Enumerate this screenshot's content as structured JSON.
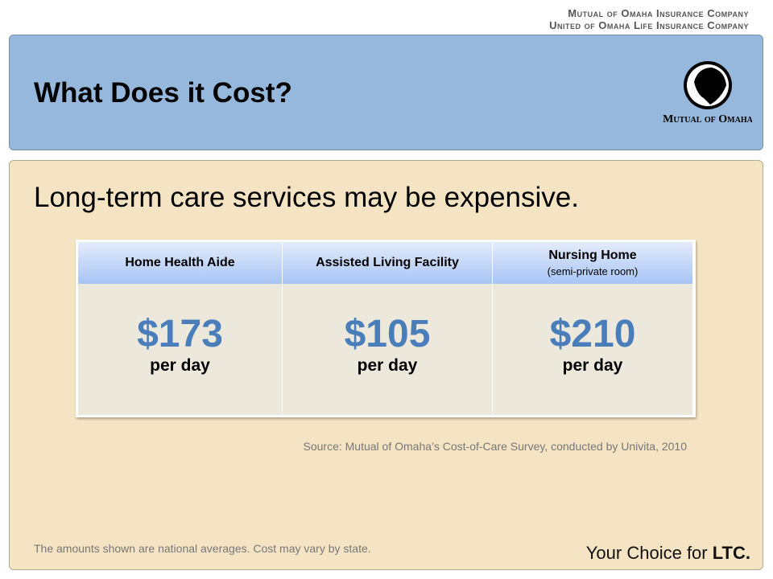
{
  "header": {
    "company_lines": [
      "Mutual of Omaha Insurance Company",
      "United of Omaha Life Insurance Company"
    ],
    "logo_text": "Mutual of Omaha"
  },
  "title": "What Does it Cost?",
  "subtitle": "Long-term care services may be expensive.",
  "table": {
    "columns": [
      {
        "name": "Home Health Aide",
        "amount": "$173",
        "unit": "per day"
      },
      {
        "name": "Assisted Living Facility",
        "amount": "$105",
        "unit": "per day"
      },
      {
        "name": "Nursing Home",
        "note": "(semi-private room)",
        "amount": "$210",
        "unit": "per day"
      }
    ]
  },
  "source": "Source: Mutual of Omaha’s Cost-of-Care Survey, conducted by Univita, 2010",
  "footnote": "The amounts shown are national averages. Cost may vary by state.",
  "tagline": {
    "text": "Your Choice for",
    "emphasis": "LTC."
  }
}
